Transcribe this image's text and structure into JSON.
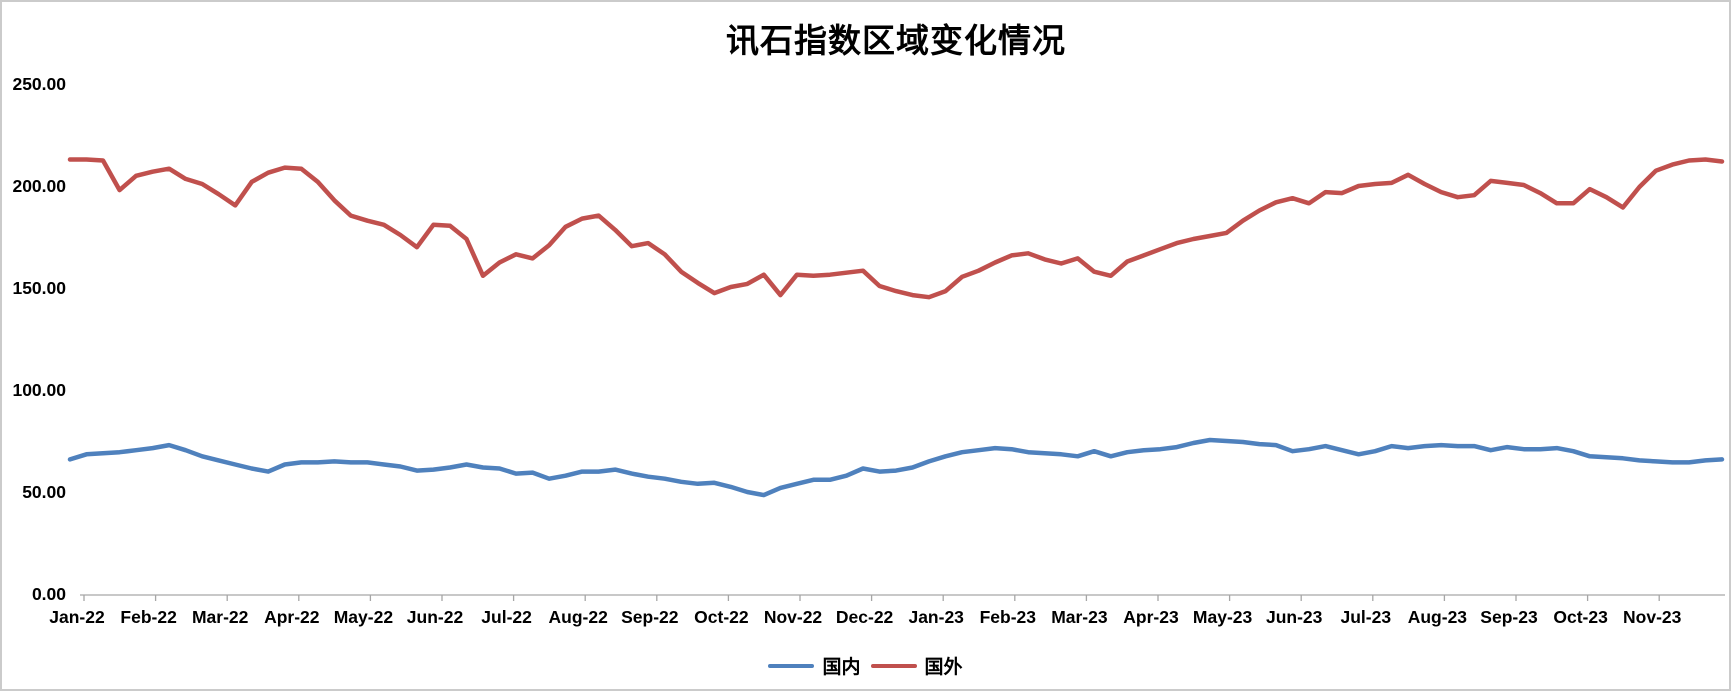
{
  "chart_data": {
    "type": "line",
    "title": "讯石指数区域变化情况",
    "xlabel": "",
    "ylabel": "",
    "ylim": [
      0,
      250
    ],
    "grid": false,
    "legend_position": "bottom",
    "y_tick_labels": [
      "250.00",
      "200.00",
      "150.00",
      "100.00",
      "50.00",
      "0.00"
    ],
    "y_tick_values": [
      250,
      200,
      150,
      100,
      50,
      0
    ],
    "x_tick_labels": [
      "Jan-22",
      "Feb-22",
      "Mar-22",
      "Apr-22",
      "May-22",
      "Jun-22",
      "Jul-22",
      "Aug-22",
      "Sep-22",
      "Oct-22",
      "Nov-22",
      "Dec-22",
      "Jan-23",
      "Feb-23",
      "Mar-23",
      "Apr-23",
      "May-23",
      "Jun-23",
      "Jul-23",
      "Aug-23",
      "Sep-23",
      "Oct-23",
      "Nov-23"
    ],
    "x_frequency": "weekly",
    "series": [
      {
        "name": "国内",
        "color": "#4F81BD",
        "values": [
          66,
          68.5,
          69,
          69.5,
          70.5,
          71.5,
          73,
          70.5,
          67.5,
          65.5,
          63.5,
          61.5,
          60,
          63.5,
          64.5,
          64.5,
          65,
          64.5,
          64.5,
          63.5,
          62.5,
          60.5,
          61,
          62,
          63.5,
          62,
          61.5,
          59,
          59.5,
          56.5,
          58,
          60,
          60,
          61,
          59,
          57.5,
          56.5,
          55,
          54,
          54.5,
          52.5,
          50,
          48.5,
          52,
          54,
          56,
          56,
          58,
          61.5,
          60,
          60.5,
          62,
          65,
          67.5,
          69.5,
          70.5,
          71.5,
          71,
          69.5,
          69,
          68.5,
          67.5,
          70,
          67.5,
          69.5,
          70.5,
          71,
          72,
          74,
          75.5,
          75,
          74.5,
          73.5,
          73,
          70,
          71,
          72.5,
          70.5,
          68.5,
          70,
          72.5,
          71.5,
          72.5,
          73,
          72.5,
          72.5,
          70.5,
          72,
          71,
          71,
          71.5,
          70,
          67.5,
          67,
          66.5,
          65.5,
          65,
          64.5,
          64.5,
          65.5,
          66
        ]
      },
      {
        "name": "国外",
        "color": "#C0504D",
        "values": [
          213,
          213,
          212.5,
          198,
          205,
          207,
          208.5,
          203.5,
          201,
          196,
          190.5,
          202,
          206.5,
          209,
          208.5,
          202,
          193,
          185.5,
          183,
          181,
          176,
          170,
          181,
          180.5,
          174,
          156,
          162.5,
          166.5,
          164.5,
          171,
          180,
          184,
          185.5,
          178.5,
          170.5,
          172,
          166.5,
          158,
          152.5,
          147.5,
          150.5,
          152,
          156.5,
          146.5,
          156.5,
          156,
          156.5,
          157.5,
          158.5,
          151,
          148.5,
          146.5,
          145.5,
          148.5,
          155.5,
          158.5,
          162.5,
          166,
          167,
          164,
          162,
          164.5,
          158,
          156,
          163,
          166,
          169,
          172,
          174,
          175.5,
          177,
          183,
          188,
          192,
          194,
          191.5,
          197,
          196.5,
          200,
          201,
          201.5,
          205.5,
          201,
          197,
          194.5,
          195.5,
          202.5,
          201.5,
          200.5,
          196.5,
          191.5,
          191.5,
          198.5,
          194.5,
          189.5,
          199.5,
          207.5,
          210.5,
          212.5,
          213,
          212
        ]
      }
    ]
  },
  "legend": {
    "domestic_label": "国内",
    "foreign_label": "国外"
  },
  "colors": {
    "domestic": "#4F81BD",
    "foreign": "#C0504D",
    "axis": "#a6a6a6",
    "border": "#cbcbcb",
    "text": "#000000"
  }
}
